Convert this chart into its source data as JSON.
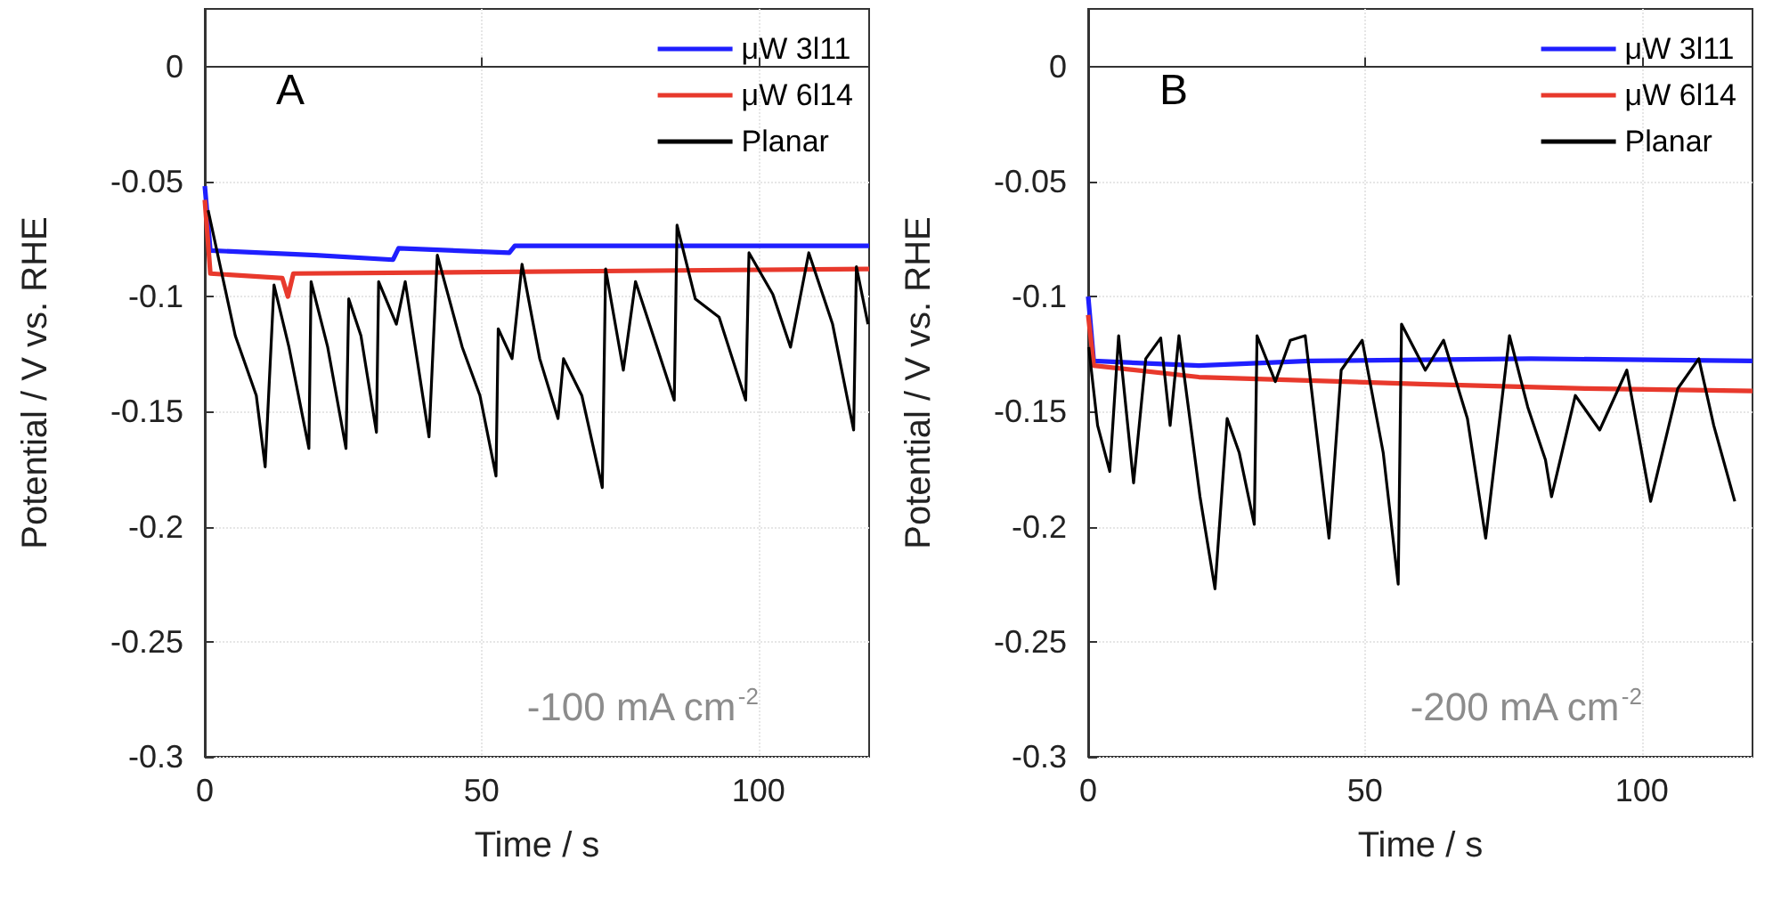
{
  "chart_data": [
    {
      "type": "line",
      "title": "A",
      "xlabel": "Time / s",
      "ylabel": "Potential / V vs. RHE",
      "xlim": [
        0,
        120
      ],
      "xticks": [
        0,
        50,
        100
      ],
      "ylim": [
        -0.3,
        0.025
      ],
      "yticks": [
        0,
        -0.05,
        -0.1,
        -0.15,
        -0.2,
        -0.25,
        -0.3
      ],
      "grid": true,
      "legend": "top right",
      "marker": "none",
      "line_style": "solid",
      "annotations": [
        "-100 mA cm$^{-2}$"
      ],
      "series": [
        {
          "name": "μW 3l11",
          "color": "#1f1fff",
          "x": [
            0,
            1,
            20,
            34,
            35,
            55,
            56,
            120
          ],
          "values": [
            -0.052,
            -0.08,
            -0.082,
            -0.084,
            -0.079,
            -0.081,
            -0.078,
            -0.078
          ]
        },
        {
          "name": "μW 6l14",
          "color": "#e8392c",
          "x": [
            0,
            1,
            14,
            15,
            16,
            120
          ],
          "values": [
            -0.058,
            -0.09,
            -0.092,
            -0.1,
            -0.09,
            -0.088
          ]
        },
        {
          "name": "Planar",
          "color": "#000000",
          "x": [
            0.6,
            5.5,
            9.3,
            10.9,
            12.5,
            15.2,
            18.8,
            19.2,
            22.2,
            25.5,
            26,
            28.2,
            31,
            31.4,
            34.6,
            36.2,
            40.5,
            42,
            46.5,
            49.7,
            52.6,
            53,
            55.5,
            57.3,
            60.5,
            63.8,
            64.8,
            68.1,
            71.8,
            72.4,
            75.6,
            77.8,
            81,
            84.8,
            85.3,
            88.6,
            92.9,
            97.7,
            98.3,
            102.6,
            105.8,
            109.1,
            113.4,
            117.2,
            117.7,
            119.8
          ],
          "values": [
            -0.0625,
            -0.117,
            -0.143,
            -0.174,
            -0.095,
            -0.122,
            -0.166,
            -0.0935,
            -0.122,
            -0.166,
            -0.101,
            -0.117,
            -0.159,
            -0.0935,
            -0.112,
            -0.0935,
            -0.161,
            -0.082,
            -0.122,
            -0.143,
            -0.178,
            -0.114,
            -0.127,
            -0.086,
            -0.127,
            -0.153,
            -0.127,
            -0.143,
            -0.183,
            -0.088,
            -0.132,
            -0.0935,
            -0.117,
            -0.145,
            -0.069,
            -0.101,
            -0.109,
            -0.145,
            -0.081,
            -0.099,
            -0.122,
            -0.081,
            -0.112,
            -0.158,
            -0.087,
            -0.112
          ]
        }
      ]
    },
    {
      "type": "line",
      "title": "B",
      "xlabel": "Time / s",
      "ylabel": "Potential / V vs. RHE",
      "xlim": [
        0,
        120
      ],
      "xticks": [
        0,
        50,
        100
      ],
      "ylim": [
        -0.3,
        0.025
      ],
      "yticks": [
        0,
        -0.05,
        -0.1,
        -0.15,
        -0.2,
        -0.25,
        -0.3
      ],
      "grid": true,
      "legend": "top right",
      "marker": "none",
      "line_style": "solid",
      "annotations": [
        "-200 mA cm$^{-2}$"
      ],
      "series": [
        {
          "name": "μW 3l11",
          "color": "#1f1fff",
          "x": [
            0,
            1,
            20,
            40,
            80,
            120
          ],
          "values": [
            -0.1,
            -0.128,
            -0.13,
            -0.128,
            -0.127,
            -0.128
          ]
        },
        {
          "name": "μW 6l14",
          "color": "#e8392c",
          "x": [
            0,
            1,
            20,
            60,
            90,
            120
          ],
          "values": [
            -0.108,
            -0.13,
            -0.135,
            -0.138,
            -0.14,
            -0.141
          ]
        },
        {
          "name": "Planar",
          "color": "#000000",
          "x": [
            0.1,
            1.7,
            3.9,
            5.5,
            8.2,
            10.4,
            13.1,
            14.8,
            16.4,
            20.2,
            22.9,
            25.1,
            27.3,
            30,
            30.5,
            33.8,
            36.5,
            39.2,
            43.5,
            45.7,
            49.5,
            53.3,
            56,
            56.6,
            60.9,
            64.2,
            68.5,
            71.8,
            76.1,
            79.4,
            82.6,
            83.7,
            88,
            92.4,
            97.3,
            101.6,
            106.5,
            110.3,
            113,
            116.8
          ],
          "values": [
            -0.122,
            -0.156,
            -0.176,
            -0.117,
            -0.181,
            -0.127,
            -0.118,
            -0.156,
            -0.117,
            -0.187,
            -0.227,
            -0.153,
            -0.168,
            -0.199,
            -0.117,
            -0.137,
            -0.119,
            -0.117,
            -0.205,
            -0.132,
            -0.119,
            -0.168,
            -0.225,
            -0.112,
            -0.132,
            -0.119,
            -0.153,
            -0.205,
            -0.117,
            -0.148,
            -0.171,
            -0.187,
            -0.143,
            -0.158,
            -0.132,
            -0.189,
            -0.14,
            -0.127,
            -0.156,
            -0.189
          ]
        }
      ]
    }
  ]
}
